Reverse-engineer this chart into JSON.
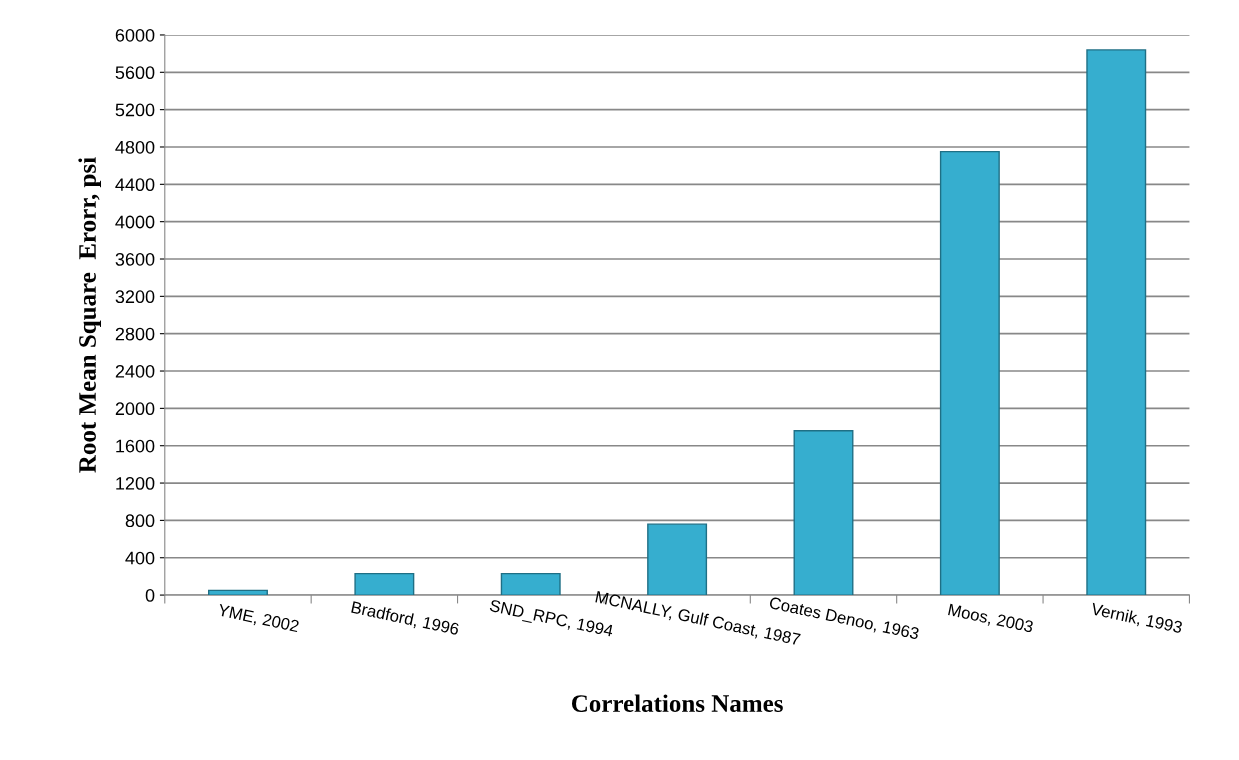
{
  "chart_data": {
    "type": "bar",
    "xlabel": "Correlations Names",
    "ylabel": "Root Mean Square  Erorr, psi",
    "categories": [
      "YME, 2002",
      "Bradford, 1996",
      "SND_RPC, 1994",
      "MCNALLY, Gulf Coast, 1987",
      "Coates Denoo, 1963",
      "Moos, 2003",
      "Vernik, 1993"
    ],
    "values": [
      50,
      230,
      230,
      760,
      1760,
      4750,
      5840
    ],
    "color": "#36aecf",
    "ylim": [
      0,
      6000
    ],
    "yticks": [
      0,
      400,
      800,
      1200,
      1600,
      2000,
      2400,
      2800,
      3200,
      3600,
      4000,
      4400,
      4800,
      5200,
      5600,
      6000
    ],
    "grid": "y"
  }
}
